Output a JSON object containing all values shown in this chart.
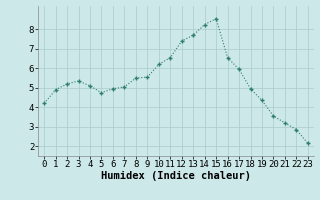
{
  "x": [
    0,
    1,
    2,
    3,
    4,
    5,
    6,
    7,
    8,
    9,
    10,
    11,
    12,
    13,
    14,
    15,
    16,
    17,
    18,
    19,
    20,
    21,
    22,
    23
  ],
  "y": [
    4.2,
    4.9,
    5.2,
    5.35,
    5.1,
    4.75,
    4.95,
    5.05,
    5.5,
    5.55,
    6.2,
    6.55,
    7.4,
    7.7,
    8.25,
    8.55,
    6.55,
    5.95,
    4.95,
    4.35,
    3.55,
    3.2,
    2.85,
    2.15
  ],
  "xlabel": "Humidex (Indice chaleur)",
  "xlim": [
    -0.5,
    23.5
  ],
  "ylim": [
    1.5,
    9.2
  ],
  "yticks": [
    2,
    3,
    4,
    5,
    6,
    7,
    8
  ],
  "xticks": [
    0,
    1,
    2,
    3,
    4,
    5,
    6,
    7,
    8,
    9,
    10,
    11,
    12,
    13,
    14,
    15,
    16,
    17,
    18,
    19,
    20,
    21,
    22,
    23
  ],
  "line_color": "#2e7d6e",
  "marker_color": "#2e7d6e",
  "bg_color": "#cce8e8",
  "grid_color": "#aacccc",
  "axis_bg": "#cce8e8",
  "tick_label_fontsize": 6.5,
  "xlabel_fontsize": 7.5
}
